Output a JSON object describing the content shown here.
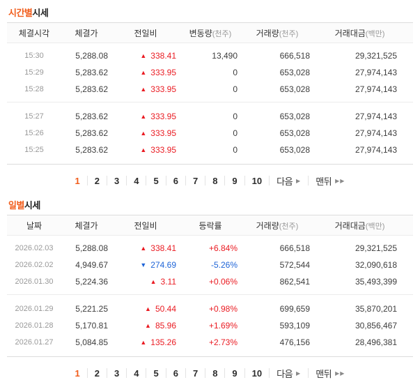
{
  "colors": {
    "accent_orange": "#f15c1a",
    "up_red": "#ea1b22",
    "down_blue": "#1e64d7"
  },
  "icons": {
    "up_arrow": "▲",
    "down_arrow": "▼",
    "next_arrow": "▶",
    "last_arrow": "▶▶"
  },
  "hourly": {
    "title": {
      "highlight": "시간별",
      "rest": "시세"
    },
    "columns": [
      {
        "label": "체결시각",
        "sub": ""
      },
      {
        "label": "체결가",
        "sub": ""
      },
      {
        "label": "전일비",
        "sub": ""
      },
      {
        "label": "변동량",
        "sub": "(천주)"
      },
      {
        "label": "거래량",
        "sub": "(천주)"
      },
      {
        "label": "거래대금",
        "sub": "(백만)"
      }
    ],
    "groups": [
      [
        {
          "time": "15:30",
          "price": "5,288.08",
          "dir": "up",
          "arrow": "▲",
          "change": "338.41",
          "delta": "13,490",
          "volume": "666,518",
          "amount": "29,321,525"
        },
        {
          "time": "15:29",
          "price": "5,283.62",
          "dir": "up",
          "arrow": "▲",
          "change": "333.95",
          "delta": "0",
          "volume": "653,028",
          "amount": "27,974,143"
        },
        {
          "time": "15:28",
          "price": "5,283.62",
          "dir": "up",
          "arrow": "▲",
          "change": "333.95",
          "delta": "0",
          "volume": "653,028",
          "amount": "27,974,143"
        }
      ],
      [
        {
          "time": "15:27",
          "price": "5,283.62",
          "dir": "up",
          "arrow": "▲",
          "change": "333.95",
          "delta": "0",
          "volume": "653,028",
          "amount": "27,974,143"
        },
        {
          "time": "15:26",
          "price": "5,283.62",
          "dir": "up",
          "arrow": "▲",
          "change": "333.95",
          "delta": "0",
          "volume": "653,028",
          "amount": "27,974,143"
        },
        {
          "time": "15:25",
          "price": "5,283.62",
          "dir": "up",
          "arrow": "▲",
          "change": "333.95",
          "delta": "0",
          "volume": "653,028",
          "amount": "27,974,143"
        }
      ]
    ]
  },
  "daily": {
    "title": {
      "highlight": "일별",
      "rest": "시세"
    },
    "columns": [
      {
        "label": "날짜",
        "sub": ""
      },
      {
        "label": "체결가",
        "sub": ""
      },
      {
        "label": "전일비",
        "sub": ""
      },
      {
        "label": "등락률",
        "sub": ""
      },
      {
        "label": "거래량",
        "sub": "(천주)"
      },
      {
        "label": "거래대금",
        "sub": "(백만)"
      }
    ],
    "groups": [
      [
        {
          "date": "2026.02.03",
          "price": "5,288.08",
          "dir": "up",
          "arrow": "▲",
          "change": "338.41",
          "rate": "+6.84%",
          "volume": "666,518",
          "amount": "29,321,525"
        },
        {
          "date": "2026.02.02",
          "price": "4,949.67",
          "dir": "down",
          "arrow": "▼",
          "change": "274.69",
          "rate": "-5.26%",
          "volume": "572,544",
          "amount": "32,090,618"
        },
        {
          "date": "2026.01.30",
          "price": "5,224.36",
          "dir": "up",
          "arrow": "▲",
          "change": "3.11",
          "rate": "+0.06%",
          "volume": "862,541",
          "amount": "35,493,399"
        }
      ],
      [
        {
          "date": "2026.01.29",
          "price": "5,221.25",
          "dir": "up",
          "arrow": "▲",
          "change": "50.44",
          "rate": "+0.98%",
          "volume": "699,659",
          "amount": "35,870,201"
        },
        {
          "date": "2026.01.28",
          "price": "5,170.81",
          "dir": "up",
          "arrow": "▲",
          "change": "85.96",
          "rate": "+1.69%",
          "volume": "593,109",
          "amount": "30,856,467"
        },
        {
          "date": "2026.01.27",
          "price": "5,084.85",
          "dir": "up",
          "arrow": "▲",
          "change": "135.26",
          "rate": "+2.73%",
          "volume": "476,156",
          "amount": "28,496,381"
        }
      ]
    ]
  },
  "pagination": {
    "pages": [
      "1",
      "2",
      "3",
      "4",
      "5",
      "6",
      "7",
      "8",
      "9",
      "10"
    ],
    "current": "1",
    "next_label": "다음",
    "last_label": "맨뒤"
  }
}
